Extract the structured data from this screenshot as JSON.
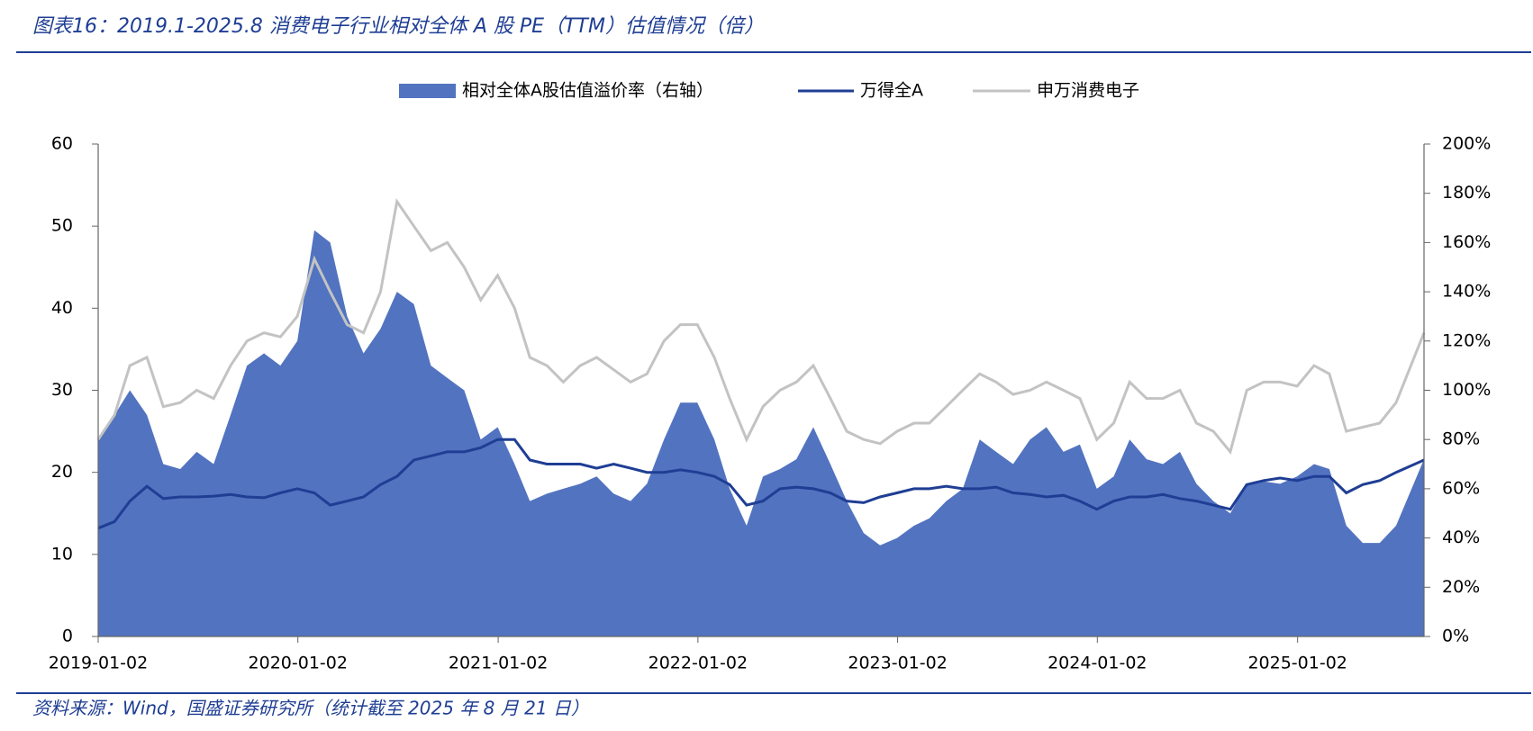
{
  "chart_data": {
    "type": "line",
    "title": "图表16：2019.1-2025.8 消费电子行业相对全体 A 股 PE（TTM）估值情况（倍）",
    "source": "资料来源：Wind，国盛证券研究所（统计截至 2025 年 8 月 21 日）",
    "x": [
      "2019-01-02",
      "2019-02-01",
      "2019-03-01",
      "2019-04-01",
      "2019-05-01",
      "2019-06-01",
      "2019-07-01",
      "2019-08-01",
      "2019-09-01",
      "2019-10-01",
      "2019-11-01",
      "2019-12-01",
      "2020-01-01",
      "2020-02-01",
      "2020-03-01",
      "2020-04-01",
      "2020-05-01",
      "2020-06-01",
      "2020-07-01",
      "2020-08-01",
      "2020-09-01",
      "2020-10-01",
      "2020-11-01",
      "2020-12-01",
      "2021-01-01",
      "2021-02-01",
      "2021-03-01",
      "2021-04-01",
      "2021-05-01",
      "2021-06-01",
      "2021-07-01",
      "2021-08-01",
      "2021-09-01",
      "2021-10-01",
      "2021-11-01",
      "2021-12-01",
      "2022-01-01",
      "2022-02-01",
      "2022-03-01",
      "2022-04-01",
      "2022-05-01",
      "2022-06-01",
      "2022-07-01",
      "2022-08-01",
      "2022-09-01",
      "2022-10-01",
      "2022-11-01",
      "2022-12-01",
      "2023-01-01",
      "2023-02-01",
      "2023-03-01",
      "2023-04-01",
      "2023-05-01",
      "2023-06-01",
      "2023-07-01",
      "2023-08-01",
      "2023-09-01",
      "2023-10-01",
      "2023-11-01",
      "2023-12-01",
      "2024-01-01",
      "2024-02-01",
      "2024-03-01",
      "2024-04-01",
      "2024-05-01",
      "2024-06-01",
      "2024-07-01",
      "2024-08-01",
      "2024-09-01",
      "2024-10-01",
      "2024-11-01",
      "2024-12-01",
      "2025-01-01",
      "2025-02-01",
      "2025-03-01",
      "2025-04-01",
      "2025-05-01",
      "2025-06-01",
      "2025-07-01",
      "2025-08-21"
    ],
    "series": [
      {
        "name": "相对全体A股估值溢价率（右轴）",
        "type": "area",
        "axis": "y2",
        "color": "#5273c0",
        "values": [
          80,
          90,
          100,
          90,
          70,
          68,
          75,
          70,
          90,
          110,
          115,
          110,
          120,
          165,
          160,
          130,
          115,
          125,
          140,
          135,
          110,
          105,
          100,
          80,
          85,
          70,
          55,
          58,
          60,
          62,
          65,
          58,
          55,
          62,
          80,
          95,
          95,
          80,
          60,
          45,
          65,
          68,
          72,
          85,
          70,
          55,
          42,
          37,
          40,
          45,
          48,
          55,
          60,
          80,
          75,
          70,
          80,
          85,
          75,
          78,
          60,
          65,
          80,
          72,
          70,
          75,
          62,
          55,
          50,
          62,
          63,
          62,
          65,
          70,
          68,
          45,
          38,
          38,
          45,
          72
        ]
      },
      {
        "name": "万得全A",
        "type": "line",
        "color": "#1f3e94",
        "values": [
          13.2,
          14,
          16.5,
          18.3,
          16.8,
          17,
          17,
          17.1,
          17.3,
          17,
          16.9,
          17.5,
          18,
          17.5,
          16,
          16.5,
          17,
          18.5,
          19.5,
          21.5,
          22,
          22.5,
          22.5,
          23,
          24,
          24,
          21.5,
          21,
          21,
          21,
          20.5,
          21,
          20.5,
          20,
          20,
          20.3,
          20,
          19.5,
          18.5,
          16,
          16.5,
          18,
          18.2,
          18,
          17.5,
          16.5,
          16.3,
          17,
          17.5,
          18,
          18,
          18.3,
          18,
          18,
          18.2,
          17.5,
          17.3,
          17,
          17.2,
          16.5,
          15.5,
          16.5,
          17,
          17,
          17.3,
          16.8,
          16.5,
          16,
          15.5,
          18.5,
          19,
          19.3,
          19,
          19.5,
          19.5,
          17.5,
          18.5,
          19,
          20,
          21.5
        ]
      },
      {
        "name": "申万消费电子",
        "type": "line",
        "color": "#c3c3c3",
        "values": [
          24,
          27,
          33,
          34,
          28,
          28.5,
          30,
          29,
          33,
          36,
          37,
          36.5,
          39,
          46,
          42,
          38,
          37,
          42,
          53,
          50,
          47,
          48,
          45,
          41,
          44,
          40,
          34,
          33,
          31,
          33,
          34,
          32.5,
          31,
          32,
          36,
          38,
          38,
          34,
          29,
          24,
          28,
          30,
          31,
          33,
          29,
          25,
          24,
          23.5,
          25,
          26,
          26,
          28,
          30,
          32,
          31,
          29.5,
          30,
          31,
          30,
          29,
          24,
          26,
          31,
          29,
          29,
          30,
          26,
          25,
          22.5,
          30,
          31,
          31,
          30.5,
          33,
          32,
          25,
          25.5,
          26,
          28.5,
          37
        ]
      }
    ],
    "xlim": [
      "2019-01-02",
      "2025-08-21"
    ],
    "xticks": [
      "2019-01-02",
      "2020-01-02",
      "2021-01-02",
      "2022-01-02",
      "2023-01-02",
      "2024-01-02",
      "2025-01-02"
    ],
    "ylim": [
      0,
      60
    ],
    "yticks": [
      0,
      10,
      20,
      30,
      40,
      50,
      60
    ],
    "y2lim": [
      0,
      200
    ],
    "y2ticks": [
      {
        "value": 0,
        "label": "0%"
      },
      {
        "value": 20,
        "label": "20%"
      },
      {
        "value": 40,
        "label": "40%"
      },
      {
        "value": 60,
        "label": "60%"
      },
      {
        "value": 80,
        "label": "80%"
      },
      {
        "value": 100,
        "label": "100%"
      },
      {
        "value": 120,
        "label": "120%"
      },
      {
        "value": 140,
        "label": "140%"
      },
      {
        "value": 160,
        "label": "160%"
      },
      {
        "value": 180,
        "label": "180%"
      },
      {
        "value": 200,
        "label": "200%"
      }
    ],
    "legend": "top",
    "grid": false
  }
}
